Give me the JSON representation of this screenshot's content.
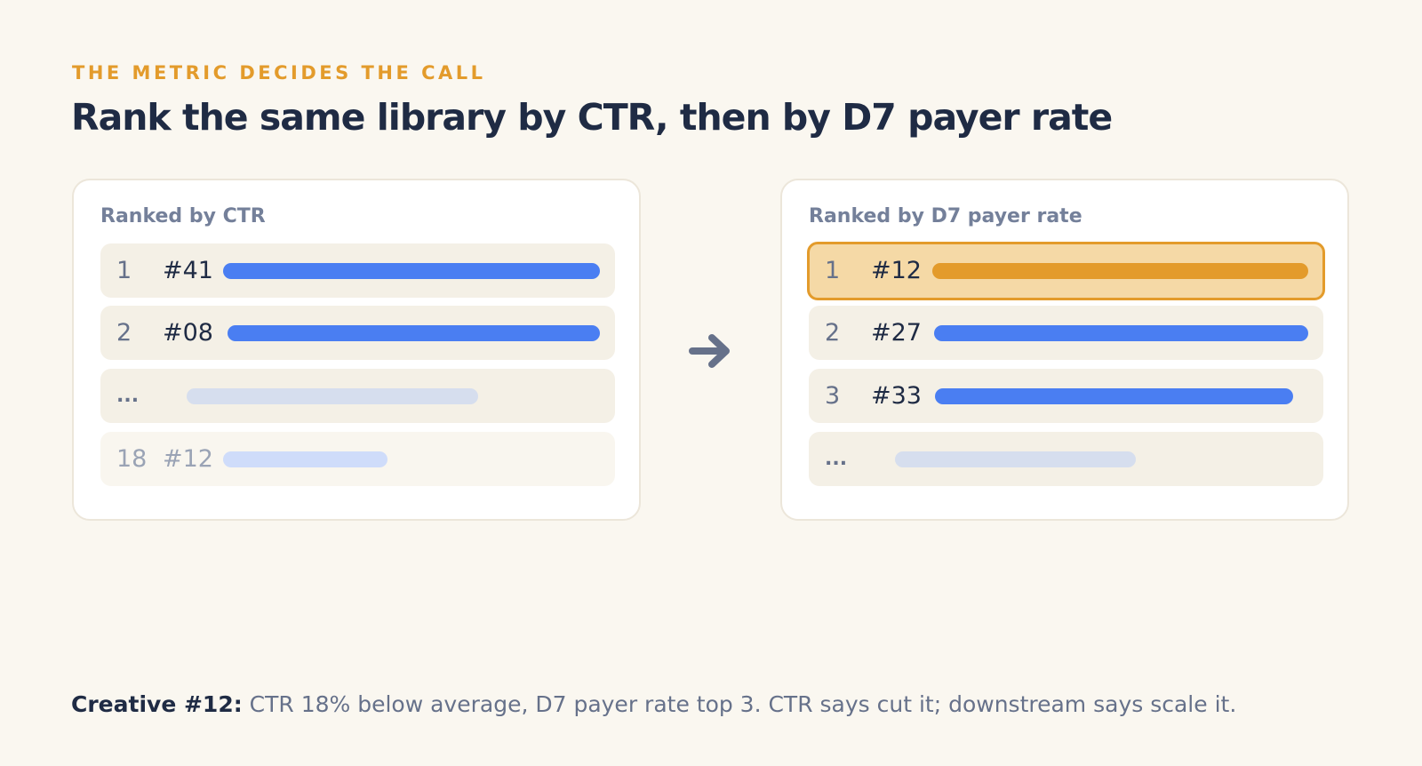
{
  "eyebrow": "THE METRIC DECIDES THE CALL",
  "headline": "Rank the same library by CTR, then by D7 payer rate",
  "left_card": {
    "title": "Ranked by CTR",
    "rows": [
      {
        "rank": "1",
        "id": "#41"
      },
      {
        "rank": "2",
        "id": "#08"
      },
      {
        "ellipsis": "..."
      },
      {
        "rank": "18",
        "id": "#12"
      }
    ]
  },
  "right_card": {
    "title": "Ranked by D7 payer rate",
    "rows": [
      {
        "rank": "1",
        "id": "#12"
      },
      {
        "rank": "2",
        "id": "#27"
      },
      {
        "rank": "3",
        "id": "#33"
      },
      {
        "ellipsis": "..."
      }
    ]
  },
  "arrow_icon": "arrow-right-icon",
  "footer": {
    "label": "Creative #12:",
    "text": " CTR 18% below average, D7 payer rate top 3. CTR says cut it; downstream says scale it."
  },
  "colors": {
    "accent": "#e39b2b",
    "bar_blue": "#4a7ef2",
    "bar_muted": "#d6deee",
    "title": "#1f2b44",
    "muted_text": "#66718a"
  }
}
